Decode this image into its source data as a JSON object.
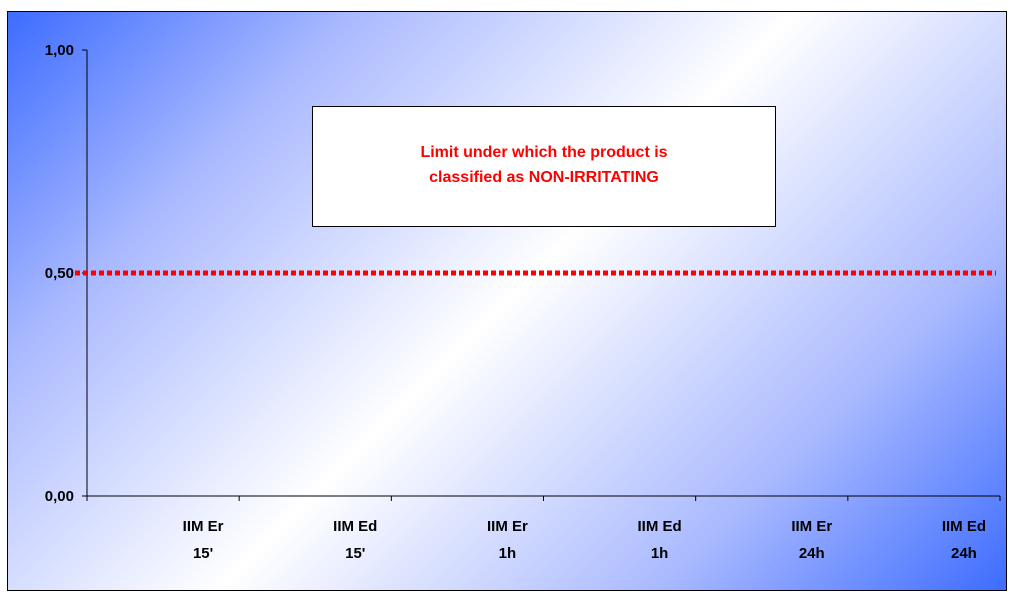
{
  "chart_data": {
    "type": "bar",
    "categories": [
      [
        "IIM Er",
        "15'"
      ],
      [
        "IIM Ed",
        "15'"
      ],
      [
        "IIM Er",
        "1h"
      ],
      [
        "IIM Ed",
        "1h"
      ],
      [
        "IIM Er",
        "24h"
      ],
      [
        "IIM Ed",
        "24h"
      ]
    ],
    "series": [],
    "y_ticks": [
      "0,00",
      "0,50",
      "1,00"
    ],
    "y_tick_values": [
      0,
      0.5,
      1
    ],
    "ylim": [
      0,
      1
    ],
    "title": "",
    "xlabel": "",
    "ylabel": "",
    "grid": false,
    "reference_line": {
      "y": 0.5,
      "color": "#ff0000",
      "style": "dotted"
    },
    "annotation": "Limit under which the product is\nclassified as NON-IRRITATING",
    "colors": {
      "reference_line": "#ff0000",
      "annotation_text": "#ff0000",
      "background_edge": "#3d6cff",
      "background_center": "#ffffff"
    }
  }
}
